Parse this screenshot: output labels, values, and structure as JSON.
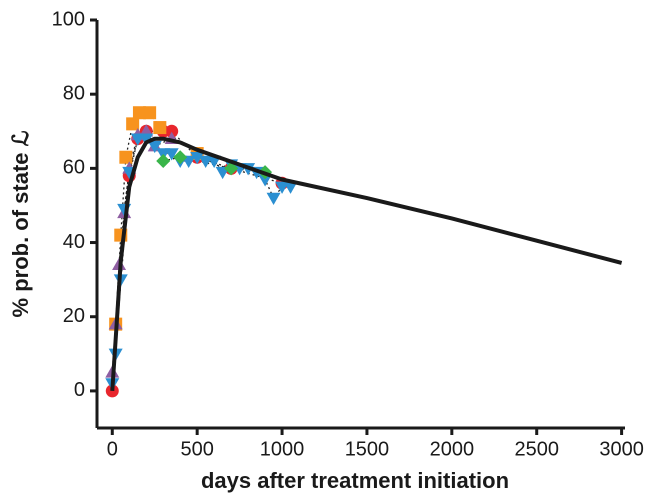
{
  "chart_data": {
    "type": "scatter",
    "xlabel": "days after treatment initiation",
    "ylabel": "% prob. of state ℒ",
    "xlim": [
      -90,
      3020
    ],
    "ylim": [
      -10,
      100
    ],
    "xticks": [
      0,
      500,
      1000,
      1500,
      2000,
      2500,
      3000
    ],
    "yticks": [
      0,
      20,
      40,
      60,
      80,
      100
    ],
    "grid": false,
    "series": [
      {
        "marker": "circle",
        "color": "#e8262d",
        "connect": "dotted",
        "x": [
          0,
          100,
          150,
          200,
          300,
          350,
          500,
          700,
          1000
        ],
        "values": [
          0,
          58,
          68,
          70,
          70,
          70,
          63,
          60,
          56
        ]
      },
      {
        "marker": "square",
        "color": "#f7931e",
        "connect": "dotted",
        "x": [
          20,
          50,
          80,
          120,
          160,
          220,
          280,
          500
        ],
        "values": [
          18,
          42,
          63,
          72,
          75,
          75,
          71,
          64
        ]
      },
      {
        "marker": "triangle-up",
        "color": "#8e5ea2",
        "connect": "dotted",
        "x": [
          0,
          20,
          40,
          70,
          100,
          150,
          200,
          250,
          350
        ],
        "values": [
          5,
          18,
          34,
          48,
          60,
          69,
          70,
          66,
          68
        ]
      },
      {
        "marker": "triangle-down",
        "color": "#2b8fd1",
        "connect": "dotted",
        "x": [
          0,
          20,
          50,
          70,
          100,
          150,
          200,
          250,
          300,
          350,
          400,
          450,
          500,
          550,
          600,
          650,
          700,
          750,
          800,
          850,
          900,
          950,
          1000,
          1050
        ],
        "values": [
          2,
          10,
          30,
          49,
          59,
          68,
          68,
          66,
          64,
          64,
          62,
          62,
          63,
          62,
          62,
          59,
          61,
          60,
          60,
          59,
          57,
          52,
          55,
          55
        ]
      },
      {
        "marker": "diamond",
        "color": "#39b54a",
        "connect": "dotted",
        "x": [
          300,
          400,
          700,
          900
        ],
        "values": [
          62,
          63,
          60,
          59
        ]
      },
      {
        "marker": "line",
        "color": "#1a1a1a",
        "x": [
          0,
          50,
          100,
          150,
          200,
          250,
          300,
          400,
          500,
          750,
          1000,
          1500,
          2000,
          2500,
          3000
        ],
        "values": [
          0,
          35,
          55,
          63,
          67,
          68,
          68,
          67,
          65,
          61,
          57,
          52,
          46.5,
          40.5,
          34.5
        ]
      }
    ]
  }
}
